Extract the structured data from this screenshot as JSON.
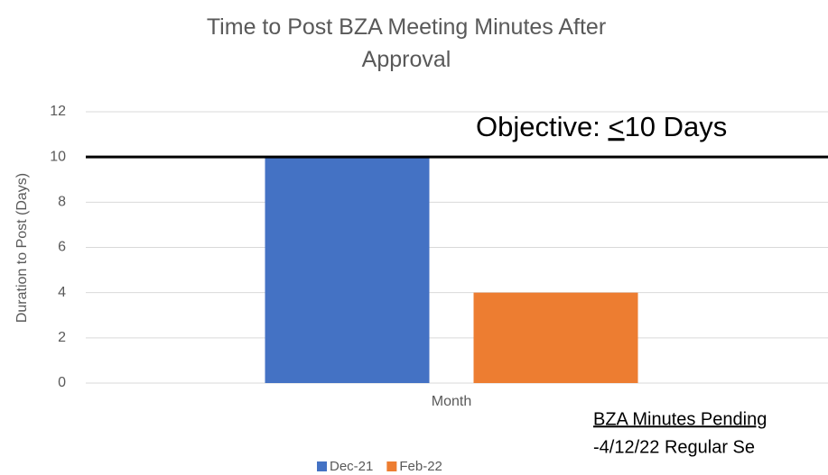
{
  "chart_data": {
    "type": "bar",
    "title": "Time to Post BZA Meeting Minutes After Approval",
    "ylabel": "Duration to Post (Days)",
    "categories": [
      "Month"
    ],
    "series": [
      {
        "name": "Dec-21",
        "color": "#4472c4",
        "values": [
          10
        ]
      },
      {
        "name": "Feb-22",
        "color": "#ed7d31",
        "values": [
          4
        ]
      }
    ],
    "ylim": [
      0,
      12
    ],
    "yticks": [
      0,
      2,
      4,
      6,
      8,
      10,
      12
    ],
    "grid": true,
    "legend": "bottom",
    "objective": {
      "value": 10,
      "label_parts": [
        "Objective: ",
        "<",
        "10 Days"
      ]
    },
    "notes": [
      "BZA Minutes Pending",
      "-4/12/22 Regular Se"
    ]
  }
}
